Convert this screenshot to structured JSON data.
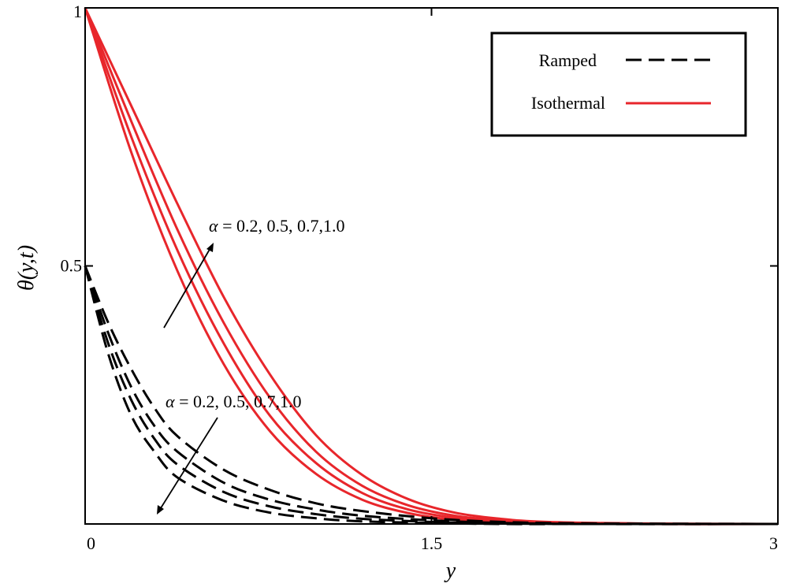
{
  "chart_data": {
    "type": "line",
    "xlabel": "y",
    "ylabel": "θ(y,t)",
    "xlim": [
      0,
      3
    ],
    "ylim": [
      0,
      1
    ],
    "xticks": [
      "0",
      "1.5",
      "3"
    ],
    "yticks": [
      "0.5",
      "1"
    ],
    "grid": false,
    "legend": {
      "placement": "top-right",
      "entries": [
        {
          "label": "Ramped",
          "style": "dashed",
          "color": "#000000"
        },
        {
          "label": "Isothermal",
          "style": "solid",
          "color": "#e8262b"
        }
      ]
    },
    "annotations": [
      {
        "name": "alpha-annotation-isothermal",
        "symbol": "α",
        "text": " = 0.2, 0.5, 0.7,1.0",
        "anchor": [
          0.52,
          0.8
        ]
      },
      {
        "name": "alpha-annotation-ramped",
        "symbol": "α",
        "text": " = 0.2, 0.5, 0.7,1.0",
        "anchor": [
          0.3,
          0.4
        ]
      }
    ],
    "series": [
      {
        "name": "Isothermal α=0.2",
        "group": "Isothermal",
        "alpha": 0.2,
        "style": "solid",
        "color": "#e8262b",
        "x": [
          0,
          0.2,
          0.4,
          0.6,
          0.8,
          1.0,
          1.2,
          1.4,
          1.6,
          1.8,
          2.0,
          2.4,
          3.0
        ],
        "y": [
          1.0,
          0.72,
          0.49,
          0.31,
          0.18,
          0.097,
          0.047,
          0.021,
          0.008,
          0.003,
          0.001,
          0.0,
          0.0
        ]
      },
      {
        "name": "Isothermal α=0.5",
        "group": "Isothermal",
        "alpha": 0.5,
        "style": "solid",
        "color": "#e8262b",
        "x": [
          0,
          0.2,
          0.4,
          0.6,
          0.8,
          1.0,
          1.2,
          1.4,
          1.6,
          1.8,
          2.0,
          2.4,
          3.0
        ],
        "y": [
          1.0,
          0.75,
          0.53,
          0.35,
          0.21,
          0.118,
          0.06,
          0.028,
          0.012,
          0.005,
          0.002,
          0.0,
          0.0
        ]
      },
      {
        "name": "Isothermal α=0.7",
        "group": "Isothermal",
        "alpha": 0.7,
        "style": "solid",
        "color": "#e8262b",
        "x": [
          0,
          0.2,
          0.4,
          0.6,
          0.8,
          1.0,
          1.2,
          1.4,
          1.6,
          1.8,
          2.0,
          2.4,
          3.0
        ],
        "y": [
          1.0,
          0.78,
          0.57,
          0.39,
          0.245,
          0.14,
          0.074,
          0.036,
          0.016,
          0.007,
          0.003,
          0.0,
          0.0
        ]
      },
      {
        "name": "Isothermal α=1.0",
        "group": "Isothermal",
        "alpha": 1.0,
        "style": "solid",
        "color": "#e8262b",
        "x": [
          0,
          0.2,
          0.4,
          0.6,
          0.8,
          1.0,
          1.2,
          1.4,
          1.6,
          1.8,
          2.0,
          2.4,
          3.0
        ],
        "y": [
          1.0,
          0.81,
          0.62,
          0.44,
          0.29,
          0.172,
          0.095,
          0.048,
          0.022,
          0.01,
          0.004,
          0.001,
          0.0
        ]
      },
      {
        "name": "Ramped α=0.2",
        "group": "Ramped",
        "alpha": 0.2,
        "style": "dashed",
        "color": "#000000",
        "x": [
          0,
          0.1,
          0.2,
          0.3,
          0.4,
          0.6,
          0.8,
          1.0,
          1.2,
          1.5,
          1.8,
          2.2,
          3.0
        ],
        "y": [
          0.5,
          0.33,
          0.21,
          0.14,
          0.09,
          0.045,
          0.022,
          0.011,
          0.005,
          0.002,
          0.0,
          0.0,
          0.0
        ]
      },
      {
        "name": "Ramped α=0.5",
        "group": "Ramped",
        "alpha": 0.5,
        "style": "dashed",
        "color": "#000000",
        "x": [
          0,
          0.1,
          0.2,
          0.3,
          0.4,
          0.6,
          0.8,
          1.0,
          1.2,
          1.5,
          1.8,
          2.2,
          3.0
        ],
        "y": [
          0.5,
          0.35,
          0.24,
          0.165,
          0.115,
          0.062,
          0.034,
          0.019,
          0.01,
          0.004,
          0.001,
          0.0,
          0.0
        ]
      },
      {
        "name": "Ramped α=0.7",
        "group": "Ramped",
        "alpha": 0.7,
        "style": "dashed",
        "color": "#000000",
        "x": [
          0,
          0.1,
          0.2,
          0.3,
          0.4,
          0.6,
          0.8,
          1.0,
          1.2,
          1.5,
          1.8,
          2.2,
          3.0
        ],
        "y": [
          0.5,
          0.37,
          0.265,
          0.19,
          0.14,
          0.08,
          0.047,
          0.028,
          0.016,
          0.007,
          0.002,
          0.0,
          0.0
        ]
      },
      {
        "name": "Ramped α=1.0",
        "group": "Ramped",
        "alpha": 1.0,
        "style": "dashed",
        "color": "#000000",
        "x": [
          0,
          0.1,
          0.2,
          0.3,
          0.4,
          0.6,
          0.8,
          1.0,
          1.2,
          1.5,
          1.8,
          2.2,
          3.0
        ],
        "y": [
          0.5,
          0.39,
          0.3,
          0.225,
          0.17,
          0.105,
          0.066,
          0.04,
          0.025,
          0.011,
          0.004,
          0.001,
          0.0
        ]
      }
    ]
  }
}
